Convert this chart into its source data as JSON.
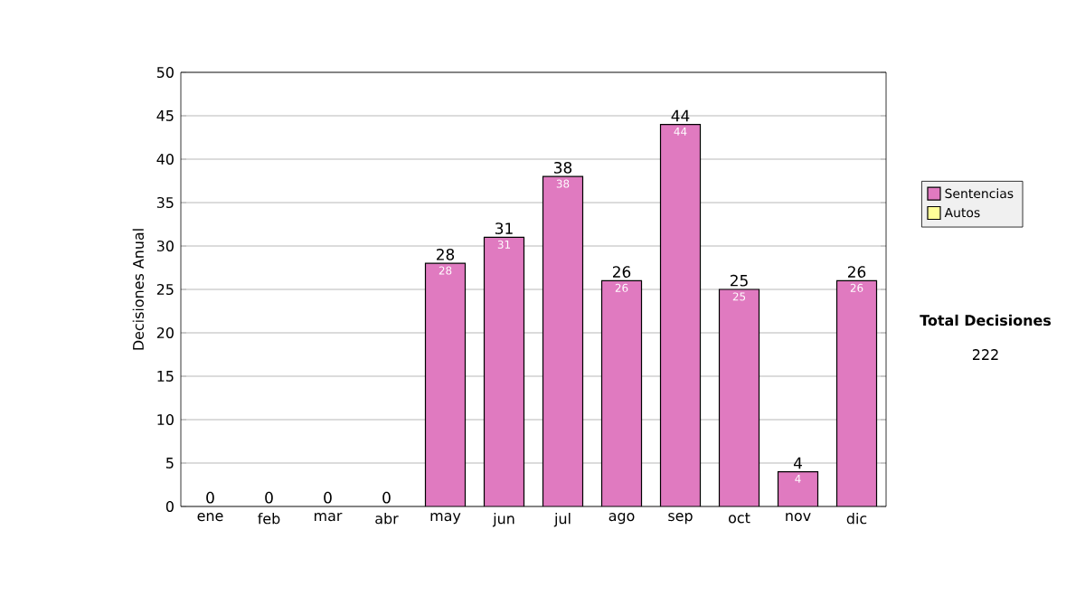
{
  "chart_data": {
    "type": "bar",
    "stacked": true,
    "ylabel": "Decisiones Anual",
    "categories": [
      "ene",
      "feb",
      "mar",
      "abr",
      "may",
      "jun",
      "jul",
      "ago",
      "sep",
      "oct",
      "nov",
      "dic"
    ],
    "series": [
      {
        "name": "Sentencias",
        "color": "#e07ac0",
        "values": [
          0,
          0,
          0,
          0,
          28,
          31,
          38,
          26,
          44,
          25,
          4,
          26
        ],
        "value_labels": [
          null,
          null,
          null,
          null,
          "28",
          "31",
          "38",
          "26",
          "44",
          "25",
          "4",
          "26"
        ]
      },
      {
        "name": "Autos",
        "color": "#ffff99",
        "values": [
          0,
          0,
          0,
          0,
          0,
          0,
          0,
          0,
          0,
          0,
          0,
          0
        ]
      }
    ],
    "totals": [
      "0",
      "0",
      "0",
      "0",
      "28",
      "31",
      "38",
      "26",
      "44",
      "25",
      "4",
      "26"
    ],
    "ylim": [
      0,
      50
    ],
    "yticks": [
      0,
      5,
      10,
      15,
      20,
      25,
      30,
      35,
      40,
      45,
      50
    ],
    "grid": "y",
    "legend": "right",
    "annotations": [
      "Total Decisiones",
      "222"
    ]
  }
}
